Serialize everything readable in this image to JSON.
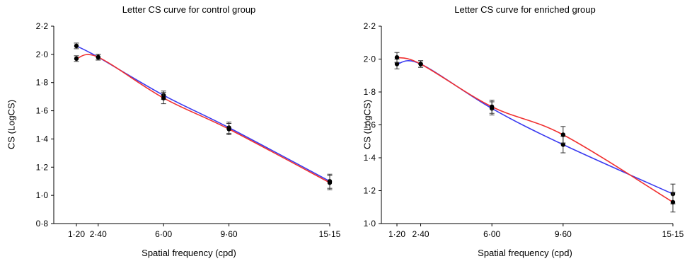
{
  "chart_data": [
    {
      "type": "line",
      "title": "Letter CS curve for control group",
      "xlabel": "Spatial frequency (cpd)",
      "ylabel": "CS (LogCS)",
      "xticks": [
        "1·20",
        "2·40",
        "6·00",
        "9·60",
        "15·15"
      ],
      "x": [
        1.2,
        2.4,
        6.0,
        9.6,
        15.15
      ],
      "ylim": [
        0.8,
        2.2
      ],
      "yticks": [
        "0·8",
        "1·0",
        "1·2",
        "1·4",
        "1·6",
        "1·8",
        "2·0",
        "2·2"
      ],
      "grid": false,
      "series": [
        {
          "color": "#3a3af0",
          "values": [
            2.06,
            1.98,
            1.71,
            1.48,
            1.1
          ],
          "errors": [
            0.02,
            0.02,
            0.03,
            0.04,
            0.05
          ]
        },
        {
          "color": "#f03030",
          "values": [
            1.97,
            1.98,
            1.69,
            1.47,
            1.09
          ],
          "errors": [
            0.02,
            0.02,
            0.04,
            0.04,
            0.05
          ]
        }
      ]
    },
    {
      "type": "line",
      "title": "Letter CS curve for enriched group",
      "xlabel": "Spatial frequency (cpd)",
      "ylabel": "CS (LogCS)",
      "xticks": [
        "1·20",
        "2·40",
        "6·00",
        "9·60",
        "15·15"
      ],
      "x": [
        1.2,
        2.4,
        6.0,
        9.6,
        15.15
      ],
      "ylim": [
        1.0,
        2.2
      ],
      "yticks": [
        "1·0",
        "1·2",
        "1·4",
        "1·6",
        "1·8",
        "2·0",
        "2·2"
      ],
      "grid": false,
      "series": [
        {
          "color": "#3a3af0",
          "values": [
            1.97,
            1.97,
            1.7,
            1.48,
            1.18
          ],
          "errors": [
            0.03,
            0.02,
            0.04,
            0.05,
            0.06
          ]
        },
        {
          "color": "#f03030",
          "values": [
            2.01,
            1.97,
            1.71,
            1.54,
            1.13
          ],
          "errors": [
            0.03,
            0.02,
            0.04,
            0.05,
            0.06
          ]
        }
      ]
    }
  ]
}
